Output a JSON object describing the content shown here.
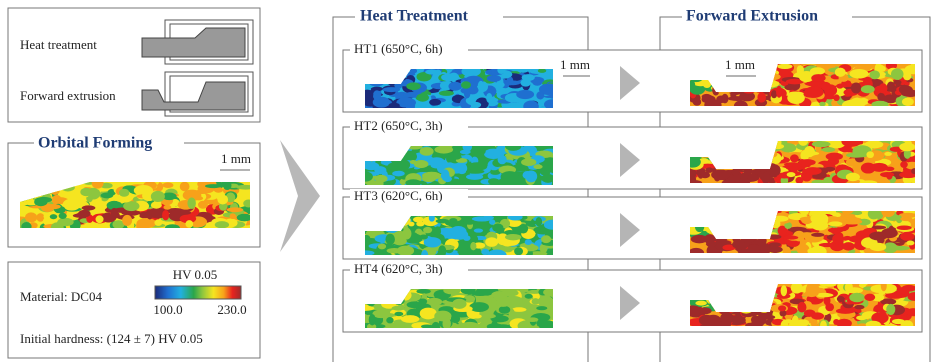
{
  "process_panel": {
    "labels": [
      "Heat treatment",
      "Forward extrusion"
    ]
  },
  "orbital_forming": {
    "title": "Orbital Forming",
    "scale": "1 mm"
  },
  "legend": {
    "material": "Material: DC04",
    "unit": "HV 0.05",
    "min": "100.0",
    "max": "230.0",
    "initial_hardness": "Initial hardness: (124 ± 7) HV 0.05"
  },
  "columns": [
    "Heat Treatment",
    "Forward Extrusion"
  ],
  "scales": [
    "1 mm",
    "1 mm"
  ],
  "rows": [
    {
      "label": "HT1 (650°C, 6h)"
    },
    {
      "label": "HT2 (650°C, 3h)"
    },
    {
      "label": "HT3 (620°C, 6h)"
    },
    {
      "label": "HT4 (620°C, 3h)"
    }
  ]
}
